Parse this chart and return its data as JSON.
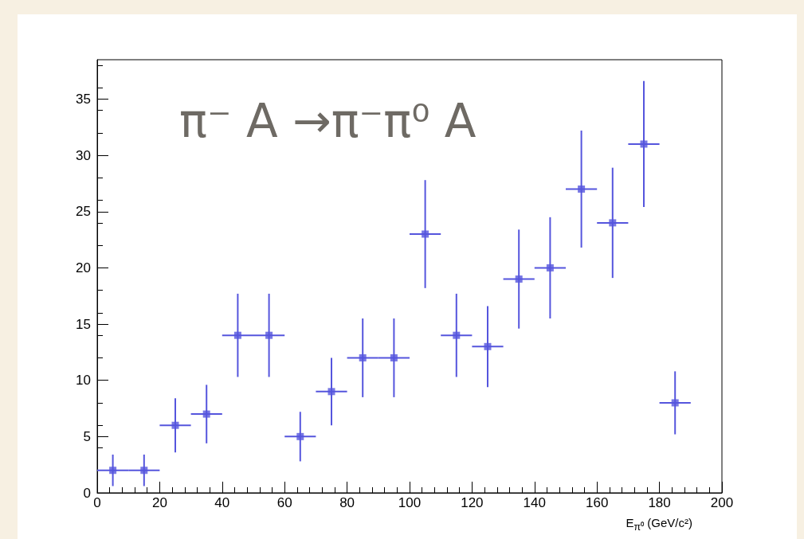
{
  "chart_data": {
    "type": "scatter",
    "title": "π⁻ A →π⁻π⁰ A",
    "xlabel": "E$_{π⁰}$ (GeV/c²)",
    "x": [
      5,
      15,
      25,
      35,
      45,
      55,
      65,
      75,
      85,
      95,
      105,
      115,
      125,
      135,
      145,
      155,
      165,
      175,
      185
    ],
    "values": [
      2,
      2,
      6,
      7,
      14,
      14,
      5,
      9,
      12,
      12,
      23,
      14,
      13,
      19,
      20,
      27,
      24,
      31,
      8
    ],
    "errors": [
      1.4,
      1.4,
      2.4,
      2.6,
      3.7,
      3.7,
      2.2,
      3,
      3.5,
      3.5,
      4.8,
      3.7,
      3.6,
      4.4,
      4.5,
      5.2,
      4.9,
      5.6,
      2.8
    ],
    "xerrors": [
      5,
      5,
      5,
      5,
      5,
      5,
      5,
      5,
      5,
      5,
      5,
      5,
      5,
      5,
      5,
      5,
      5,
      5,
      5
    ],
    "color": "#5555dd",
    "marker": "square",
    "xlim": [
      0,
      200
    ],
    "xticks": [
      0,
      20,
      40,
      60,
      80,
      100,
      120,
      140,
      160,
      180,
      200
    ],
    "ylim": [
      0,
      38.5
    ],
    "yticks": [
      0,
      5,
      10,
      15,
      20,
      25,
      30,
      35
    ],
    "grid": false
  }
}
